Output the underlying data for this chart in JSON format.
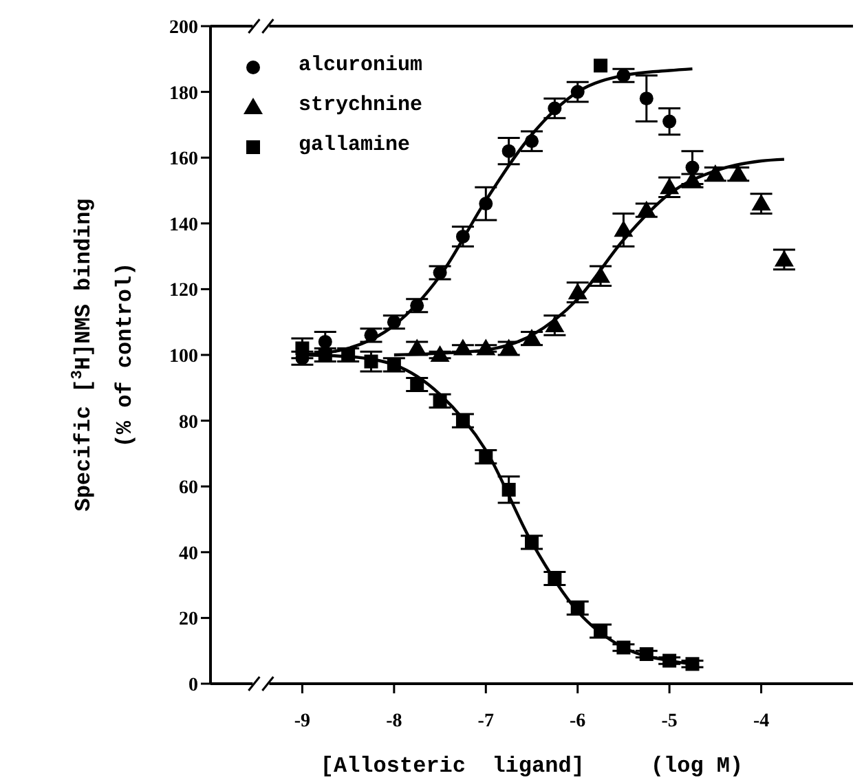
{
  "chart_data": {
    "type": "scatter",
    "xlabel": "[Allosteric  ligand]     (log M)",
    "ylabel": "Specific [$^{3}$H]NMS binding\n(% of control)",
    "xlim": [
      -10,
      -3
    ],
    "xticks": [
      -9,
      -8,
      -7,
      -6,
      -5,
      -4
    ],
    "ylim": [
      0,
      200
    ],
    "yticks": [
      0,
      20,
      40,
      60,
      80,
      100,
      120,
      140,
      160,
      180,
      200
    ],
    "grid": false,
    "legend": "top left",
    "series": [
      {
        "name": "alcuronium",
        "marker": "circle",
        "color": "#000000",
        "x": [
          -9,
          -8.75,
          -8.25,
          -8,
          -7.75,
          -7.5,
          -7.25,
          -7,
          -6.75,
          -6.5,
          -6.25,
          -6,
          -5.5,
          -5.25,
          -5,
          -4.75
        ],
        "values": [
          99,
          104,
          106,
          110,
          115,
          125,
          136,
          146,
          162,
          165,
          175,
          180,
          185,
          178,
          171,
          157
        ],
        "errors": [
          2,
          3,
          2,
          2,
          2,
          2,
          3,
          5,
          4,
          3,
          3,
          3,
          2,
          7,
          4,
          5
        ]
      },
      {
        "name": "strychnine",
        "marker": "triangle",
        "color": "#000000",
        "x": [
          -7.75,
          -7.5,
          -7.25,
          -7,
          -6.75,
          -6.5,
          -6.25,
          -6,
          -5.75,
          -5.5,
          -5.25,
          -5,
          -4.75,
          -4.5,
          -4.25,
          -4,
          -3.75
        ],
        "values": [
          102,
          100,
          102,
          102,
          102,
          105,
          109,
          119,
          124,
          138,
          144,
          151,
          153,
          155,
          155,
          146,
          129
        ],
        "errors": [
          2,
          1,
          1,
          1,
          2,
          2,
          3,
          3,
          3,
          5,
          2,
          3,
          2,
          2,
          2,
          3,
          3
        ]
      },
      {
        "name": "gallamine",
        "marker": "square",
        "color": "#000000",
        "x": [
          -9,
          -8.75,
          -8.5,
          -8.25,
          -8,
          -7.75,
          -7.5,
          -7.25,
          -7,
          -6.75,
          -6.5,
          -6.25,
          -6,
          -5.75,
          -5.5,
          -5.25,
          -5,
          -4.75,
          -5.75
        ],
        "values": [
          102,
          100,
          100,
          98,
          97,
          91,
          86,
          80,
          69,
          59,
          43,
          32,
          23,
          16,
          11,
          9,
          7,
          6,
          188
        ],
        "errors": [
          3,
          2,
          2,
          3,
          2,
          2,
          2,
          2,
          2,
          4,
          2,
          2,
          2,
          2,
          1,
          1,
          1,
          1,
          null
        ]
      },
      {
        "type": "line",
        "marker": "none",
        "color": "#000000",
        "x": [
          -9,
          -8.5,
          -8,
          -7.5,
          -7,
          -6.5,
          -6,
          -5.5,
          -5,
          -4.75
        ],
        "values": [
          100,
          102,
          109,
          124,
          147,
          167,
          180,
          185,
          186.5,
          187
        ]
      },
      {
        "type": "line",
        "marker": "none",
        "color": "#000000",
        "x": [
          -8,
          -7.5,
          -7,
          -6.5,
          -6,
          -5.5,
          -5,
          -4.5,
          -4,
          -3.75
        ],
        "values": [
          100,
          100.5,
          101.5,
          106,
          117,
          135,
          149,
          156,
          159,
          159.5
        ]
      },
      {
        "type": "line",
        "marker": "none",
        "color": "#000000",
        "x": [
          -9,
          -8.5,
          -8,
          -7.5,
          -7,
          -6.5,
          -6,
          -5.5,
          -5,
          -4.75
        ],
        "values": [
          100,
          99.5,
          97,
          88,
          71,
          43,
          22,
          11,
          7,
          6
        ]
      }
    ]
  }
}
